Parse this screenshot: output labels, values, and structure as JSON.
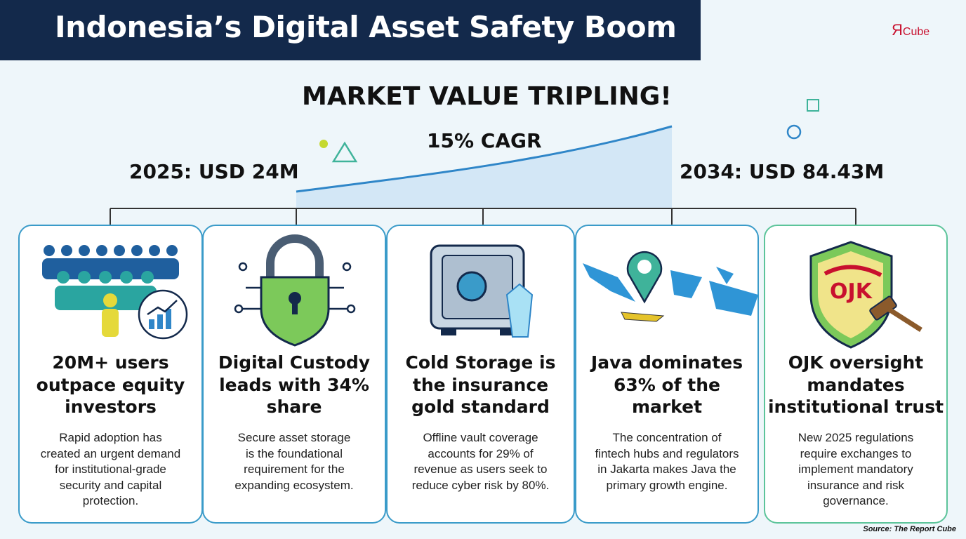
{
  "header": {
    "title": "Indonesia’s Digital Asset Safety Boom",
    "logo_mark": "Я",
    "logo_word": "Cube"
  },
  "headline": "MARKET VALUE TRIPLING!",
  "cagr": "15% CAGR",
  "start_value": "2025: USD 24M",
  "end_value": "2034: USD 84.43M",
  "cards": [
    {
      "title": [
        "20M+ users",
        "outpace equity",
        "investors"
      ],
      "body": [
        "Rapid adoption has",
        "created an urgent demand",
        "for institutional-grade",
        "security and capital",
        "protection."
      ]
    },
    {
      "title": [
        "Digital Custody",
        "leads with 34%",
        "share"
      ],
      "body": [
        "Secure asset storage",
        "is the foundational",
        "requirement for the",
        "expanding ecosystem."
      ]
    },
    {
      "title": [
        "Cold Storage is",
        "the insurance",
        "gold standard"
      ],
      "body": [
        "Offline vault coverage",
        "accounts for 29% of",
        "revenue as users seek to",
        "reduce cyber risk by 80%."
      ]
    },
    {
      "title": [
        "Java dominates",
        "63% of the",
        "market"
      ],
      "body": [
        "The concentration of",
        "fintech hubs and regulators",
        "in Jakarta makes Java the",
        "primary growth engine."
      ]
    },
    {
      "title": [
        "OJK oversight",
        "mandates",
        "institutional trust"
      ],
      "body": [
        "New 2025 regulations",
        "require exchanges to",
        "implement mandatory",
        "insurance and risk",
        "governance."
      ]
    }
  ],
  "shield_label": "OJK",
  "source": "Source: The Report Cube"
}
